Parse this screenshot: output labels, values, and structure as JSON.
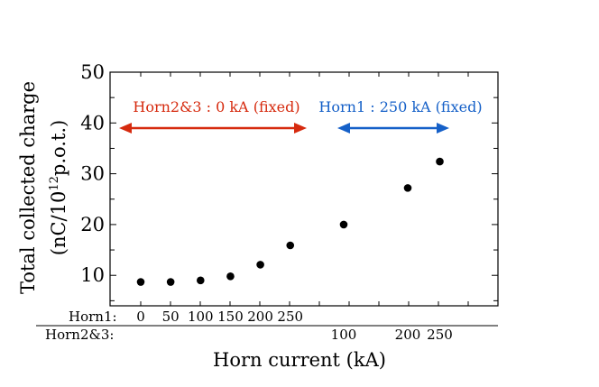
{
  "chart_data": {
    "type": "scatter",
    "ylabel_line1": "Total collected charge",
    "ylabel_line2_pre": "(nC/10",
    "ylabel_line2_sup": "12",
    "ylabel_line2_post": "p.o.t.)",
    "xlabel": "Horn current (kA)",
    "ylim": [
      4,
      50
    ],
    "yticks": [
      10,
      20,
      30,
      40,
      50
    ],
    "grid": false,
    "axis_rows": [
      {
        "label": "Horn1:",
        "ticks": [
          "0",
          "50",
          "100",
          "150",
          "200",
          "250"
        ]
      },
      {
        "label": "Horn2&3:",
        "ticks": [
          "100",
          "200",
          "250"
        ]
      }
    ],
    "annotations": [
      {
        "text": "Horn2&3 : 0 kA (fixed)",
        "color": "#d62a0e"
      },
      {
        "text": "Horn1 : 250 kA (fixed)",
        "color": "#1560c8"
      }
    ],
    "series": [
      {
        "points": [
          {
            "horn": "Horn1",
            "x": 0,
            "y": 8.7
          },
          {
            "horn": "Horn1",
            "x": 50,
            "y": 8.7
          },
          {
            "horn": "Horn1",
            "x": 100,
            "y": 9.0
          },
          {
            "horn": "Horn1",
            "x": 150,
            "y": 9.8
          },
          {
            "horn": "Horn1",
            "x": 200,
            "y": 12.1
          },
          {
            "horn": "Horn1",
            "x": 250,
            "y": 15.9
          },
          {
            "horn": "Horn2&3",
            "x": 100,
            "y": 20.0
          },
          {
            "horn": "Horn2&3",
            "x": 200,
            "y": 27.2
          },
          {
            "horn": "Horn2&3",
            "x": 250,
            "y": 32.4
          }
        ]
      }
    ]
  }
}
